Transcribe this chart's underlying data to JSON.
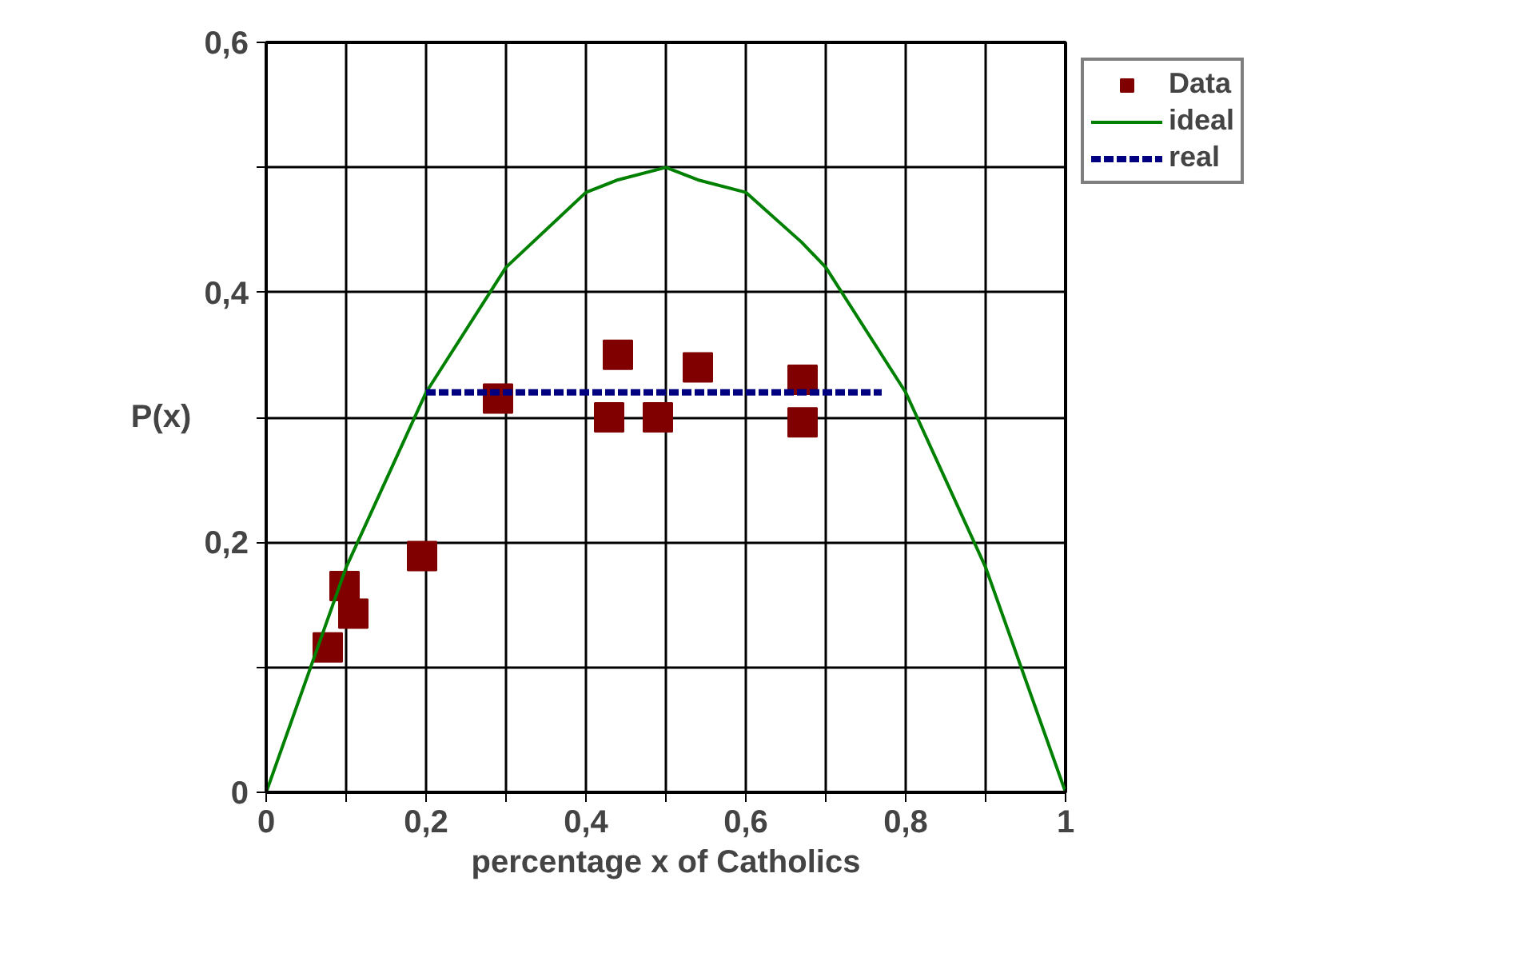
{
  "chart_data": {
    "type": "scatter",
    "xlabel": "percentage x of Catholics",
    "ylabel": "P(x)",
    "xlim": [
      0,
      1
    ],
    "ylim": [
      0,
      0.6
    ],
    "xticks": [
      0,
      {
        "value": 0.1,
        "label": null
      },
      {
        "value": 0.2,
        "label": "0,2"
      },
      {
        "value": 0.3,
        "label": null
      },
      {
        "value": 0.4,
        "label": "0,4"
      },
      {
        "value": 0.5,
        "label": null
      },
      {
        "value": 0.6,
        "label": "0,6"
      },
      {
        "value": 0.7,
        "label": null
      },
      {
        "value": 0.8,
        "label": "0,8"
      },
      {
        "value": 0.9,
        "label": null
      },
      1
    ],
    "yticks": [
      0,
      {
        "value": 0.1,
        "label": null
      },
      {
        "value": 0.2,
        "label": "0,2"
      },
      {
        "value": 0.3,
        "label": null
      },
      {
        "value": 0.4,
        "label": "0,4"
      },
      {
        "value": 0.5,
        "label": null
      },
      {
        "value": 0.6,
        "label": "0,6"
      }
    ],
    "grid": true,
    "legend": "right",
    "series": [
      {
        "name": "Data",
        "marker": "square",
        "color": "#800000",
        "x": [
          0.077,
          0.098,
          0.109,
          0.195,
          0.29,
          0.429,
          0.44,
          0.49,
          0.54,
          0.671,
          0.671
        ],
        "values": [
          0.116,
          0.165,
          0.143,
          0.189,
          0.315,
          0.3,
          0.35,
          0.3,
          0.34,
          0.33,
          0.296
        ]
      },
      {
        "name": "ideal",
        "type": "line",
        "line_style": "solid",
        "color": "#008000",
        "x": [
          0,
          0.1,
          0.2,
          0.3,
          0.4,
          0.44,
          0.5,
          0.54,
          0.6,
          0.67,
          0.7,
          0.8,
          0.9,
          1
        ],
        "values": [
          0,
          0.18,
          0.32,
          0.42,
          0.48,
          0.49,
          0.5,
          0.49,
          0.48,
          0.44,
          0.42,
          0.32,
          0.18,
          0
        ]
      },
      {
        "name": "real",
        "type": "line",
        "line_style": "dashed",
        "color": "#000080",
        "x": [
          0.2,
          0.77
        ],
        "values": [
          0.32,
          0.32
        ]
      }
    ]
  }
}
